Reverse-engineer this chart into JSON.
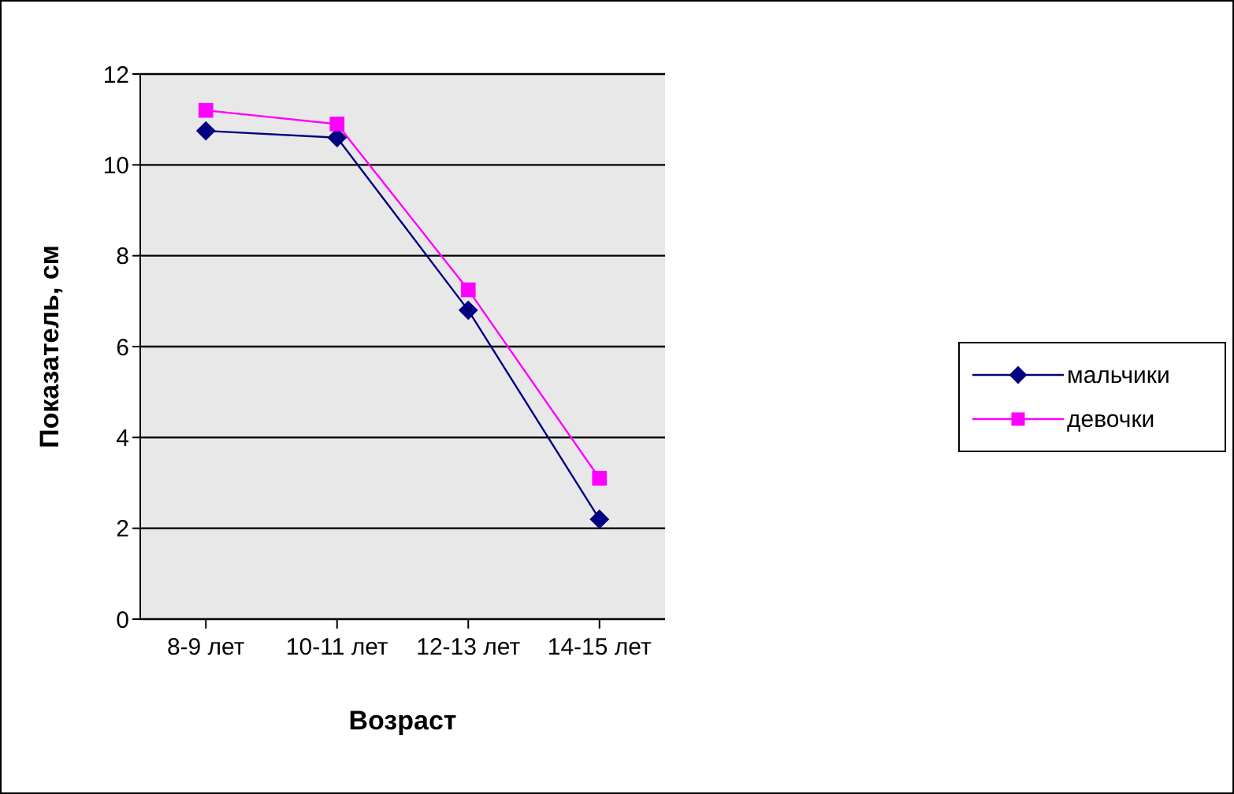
{
  "chart_data": {
    "type": "line",
    "xlabel": "Возраст",
    "ylabel": "Показатель, см",
    "categories": [
      "8-9 лет",
      "10-11 лет",
      "12-13 лет",
      "14-15 лет"
    ],
    "series": [
      {
        "name": "мальчики",
        "color": "#000080",
        "marker": "diamond",
        "values": [
          10.75,
          10.6,
          6.8,
          2.2
        ]
      },
      {
        "name": "девочки",
        "color": "#ff00ff",
        "marker": "square",
        "values": [
          11.2,
          10.9,
          7.25,
          3.1
        ]
      }
    ],
    "ylim": [
      0,
      12
    ],
    "yticks": [
      0,
      2,
      4,
      6,
      8,
      10,
      12
    ],
    "grid": "y",
    "legend": "right"
  }
}
